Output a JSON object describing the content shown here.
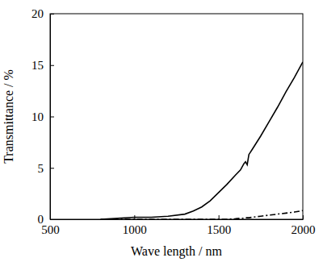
{
  "chart_data": {
    "type": "line",
    "x_label": "Wave length  /  nm",
    "y_label": "Transmittance  /  %",
    "x": [
      800,
      900,
      1000,
      1100,
      1200,
      1300,
      1350,
      1400,
      1450,
      1500,
      1550,
      1600,
      1630,
      1650,
      1660,
      1670,
      1680,
      1700,
      1750,
      1800,
      1850,
      1900,
      1950,
      2000
    ],
    "series": [
      {
        "color": "#000000",
        "line_style": "solid",
        "values": [
          0,
          0.1,
          0.2,
          0.2,
          0.3,
          0.5,
          0.8,
          1.2,
          1.8,
          2.6,
          3.4,
          4.3,
          4.8,
          5.4,
          5.6,
          5.3,
          6.3,
          6.8,
          8.1,
          9.5,
          10.9,
          12.4,
          13.8,
          15.3
        ]
      },
      {
        "color": "#000000",
        "line_style": "dashdot",
        "values": [
          0,
          0,
          0,
          0,
          0,
          0,
          0,
          0,
          0,
          0,
          0,
          0.05,
          0.1,
          0.1,
          0.15,
          0.15,
          0.15,
          0.2,
          0.3,
          0.4,
          0.5,
          0.6,
          0.7,
          0.85
        ]
      }
    ],
    "xlim": [
      500,
      2000
    ],
    "ylim": [
      0,
      20
    ],
    "xticks": [
      500,
      1000,
      1500,
      2000
    ],
    "yticks": [
      0,
      5,
      10,
      15,
      20
    ],
    "grid": false
  }
}
